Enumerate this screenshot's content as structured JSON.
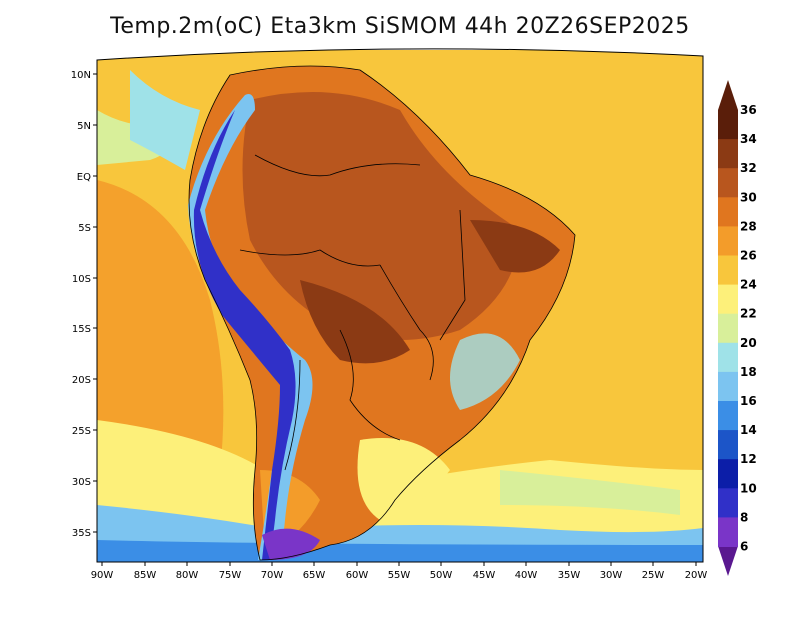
{
  "title": "Temp.2m(oC) Eta3km SiSMOM 44h 20Z26SEP2025",
  "lat_labels": [
    "10N",
    "5N",
    "EQ",
    "5S",
    "10S",
    "15S",
    "20S",
    "25S",
    "30S",
    "35S"
  ],
  "lon_labels": [
    "90W",
    "85W",
    "80W",
    "75W",
    "70W",
    "65W",
    "60W",
    "55W",
    "50W",
    "45W",
    "40W",
    "35W",
    "30W",
    "25W",
    "20W"
  ],
  "colorbar": {
    "levels": [
      "36",
      "34",
      "32",
      "30",
      "28",
      "26",
      "24",
      "22",
      "20",
      "18",
      "16",
      "14",
      "12",
      "10",
      "8",
      "6"
    ],
    "colors": [
      "#5a1e0a",
      "#8b3a14",
      "#b8561e",
      "#e0761f",
      "#f39c2a",
      "#f8c63c",
      "#fdf07a",
      "#d8ef9a",
      "#9fe2e8",
      "#7cc4f0",
      "#3b8ee6",
      "#1c55c8",
      "#0c1ea8",
      "#3030c8",
      "#7a35c8",
      "#5a1890"
    ]
  },
  "map_legend": {
    "variable": "2m temperature",
    "units": "oC"
  }
}
